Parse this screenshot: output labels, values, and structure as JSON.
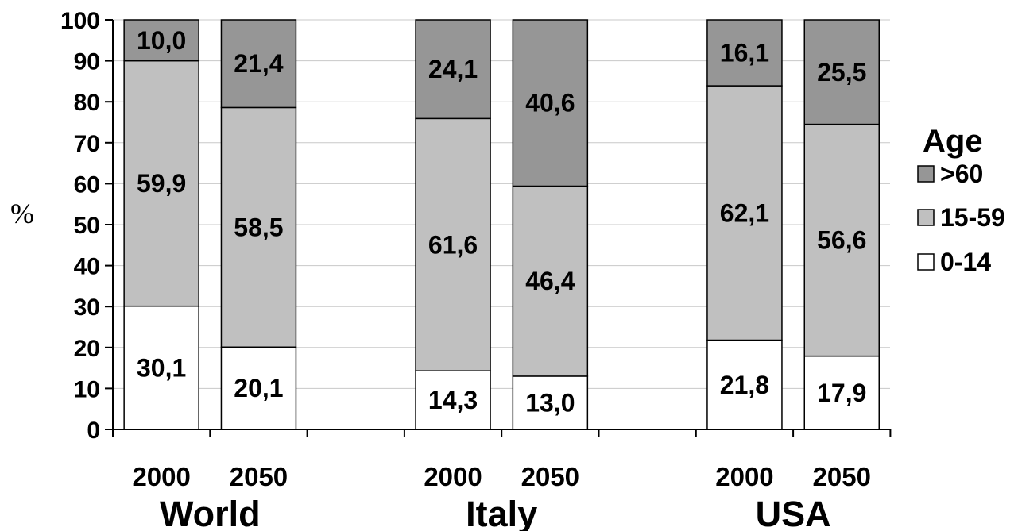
{
  "chart_data": {
    "type": "bar",
    "stacked": true,
    "ylabel": "%",
    "ylim": [
      0,
      100
    ],
    "yticks": [
      0,
      10,
      20,
      30,
      40,
      50,
      60,
      70,
      80,
      90,
      100
    ],
    "grid": true,
    "groups": [
      {
        "name": "World",
        "categories": [
          "2000",
          "2050"
        ]
      },
      {
        "name": "Italy",
        "categories": [
          "2000",
          "2050"
        ]
      },
      {
        "name": "USA",
        "categories": [
          "2000",
          "2050"
        ]
      }
    ],
    "categories": [
      "2000",
      "2050",
      "2000",
      "2050",
      "2000",
      "2050"
    ],
    "series": [
      {
        "name": "0-14",
        "color": "#ffffff",
        "values": [
          30.1,
          20.1,
          14.3,
          13.0,
          21.8,
          17.9
        ],
        "labels": [
          "30,1",
          "20,1",
          "14,3",
          "13,0",
          "21,8",
          "17,9"
        ]
      },
      {
        "name": "15-59",
        "color": "#c0c0c0",
        "values": [
          59.9,
          58.5,
          61.6,
          46.4,
          62.1,
          56.6
        ],
        "labels": [
          "59,9",
          "58,5",
          "61,6",
          "46,4",
          "62,1",
          "56,6"
        ]
      },
      {
        "name": ">60",
        "color": "#969696",
        "values": [
          10.0,
          21.4,
          24.1,
          40.6,
          16.1,
          25.5
        ],
        "labels": [
          "10,0",
          "21,4",
          "24,1",
          "40,6",
          "16,1",
          "25,5"
        ]
      }
    ],
    "legend": {
      "title": "Age",
      "position": "right",
      "order": [
        ">60",
        "15-59",
        "0-14"
      ]
    }
  }
}
